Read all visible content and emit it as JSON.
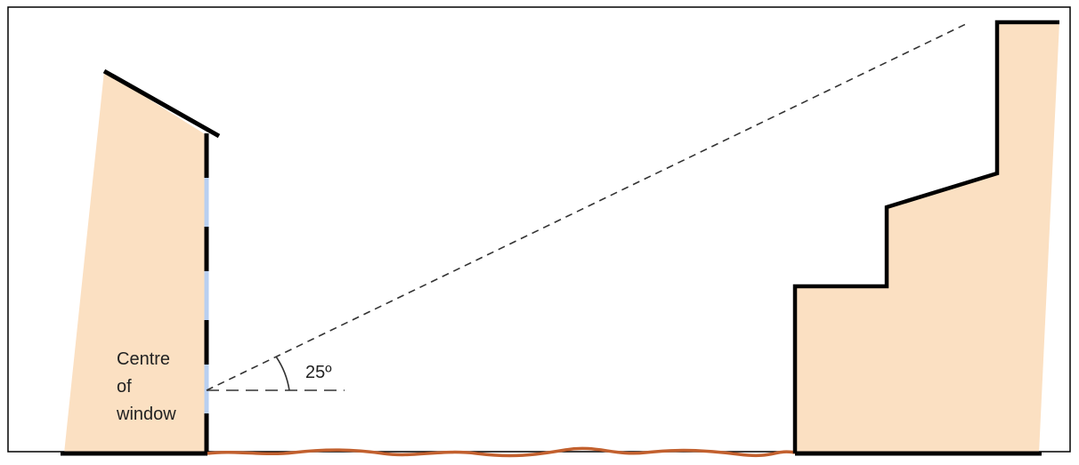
{
  "window_label": {
    "line1": "Centre",
    "line2": "of",
    "line3": "window"
  },
  "angle_label": "25º",
  "colors": {
    "building_fill": "#fbe0c2",
    "outline": "#000000",
    "window_glass": "#b8cff0",
    "ground_path": "#c2602e",
    "sight_line": "#333333"
  }
}
